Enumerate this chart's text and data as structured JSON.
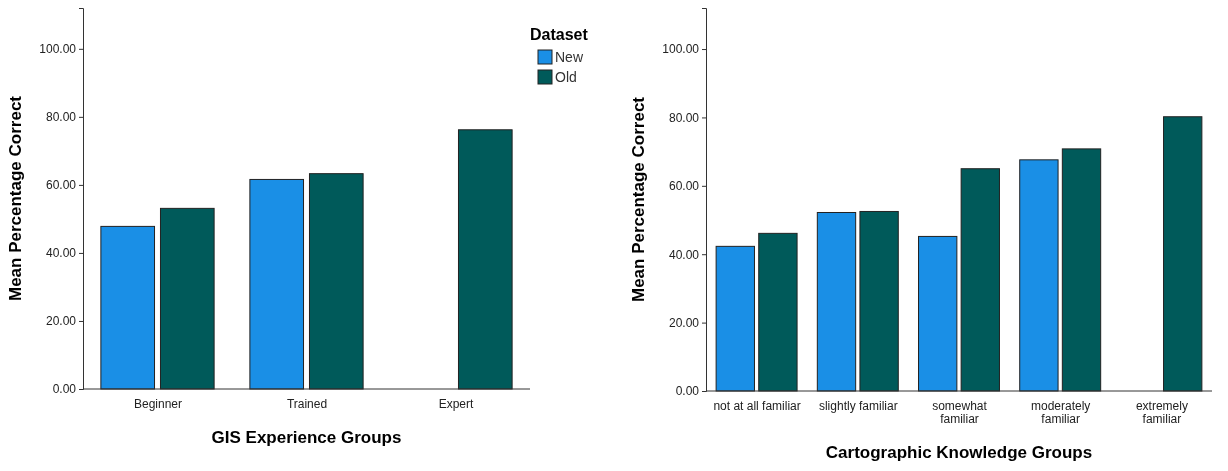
{
  "chart_data": [
    {
      "type": "bar",
      "xlabel": "GIS Experience Groups",
      "ylabel": "Mean Percentage Correct",
      "legend_title": "Dataset",
      "categories": [
        "Beginner",
        "Trained",
        "Expert"
      ],
      "series": [
        {
          "name": "New",
          "color": "#1a8fe6",
          "values": [
            47.8,
            61.6,
            null
          ]
        },
        {
          "name": "Old",
          "color": "#005a5a",
          "values": [
            53.1,
            63.3,
            76.2
          ]
        }
      ],
      "ylim": [
        0,
        112
      ],
      "yticks": [
        {
          "value": 0,
          "label": "0.00"
        },
        {
          "value": 20,
          "label": "20.00"
        },
        {
          "value": 40,
          "label": "40.00"
        },
        {
          "value": 60,
          "label": "60.00"
        },
        {
          "value": 80,
          "label": "80.00"
        },
        {
          "value": 100,
          "label": "100.00"
        }
      ],
      "grid": false,
      "legend": "top right"
    },
    {
      "type": "bar",
      "xlabel": "Cartographic Knowledge Groups",
      "ylabel": "Mean Percentage Correct",
      "categories": [
        "not at all familiar",
        "slightly familiar",
        "somewhat familiar",
        "moderately familiar",
        "extremely familiar"
      ],
      "series": [
        {
          "color": "#1a8fe6",
          "values": [
            42.3,
            52.2,
            45.2,
            67.6,
            null
          ]
        },
        {
          "color": "#005a5a",
          "values": [
            46.1,
            52.5,
            65.0,
            70.8,
            80.2
          ]
        }
      ],
      "ylim": [
        0,
        112
      ],
      "yticks": [
        {
          "value": 0,
          "label": "0.00"
        },
        {
          "value": 20,
          "label": "20.00"
        },
        {
          "value": 40,
          "label": "40.00"
        },
        {
          "value": 60,
          "label": "60.00"
        },
        {
          "value": 80,
          "label": "80.00"
        },
        {
          "value": 100,
          "label": "100.00"
        }
      ],
      "grid": false,
      "legend": false
    }
  ]
}
